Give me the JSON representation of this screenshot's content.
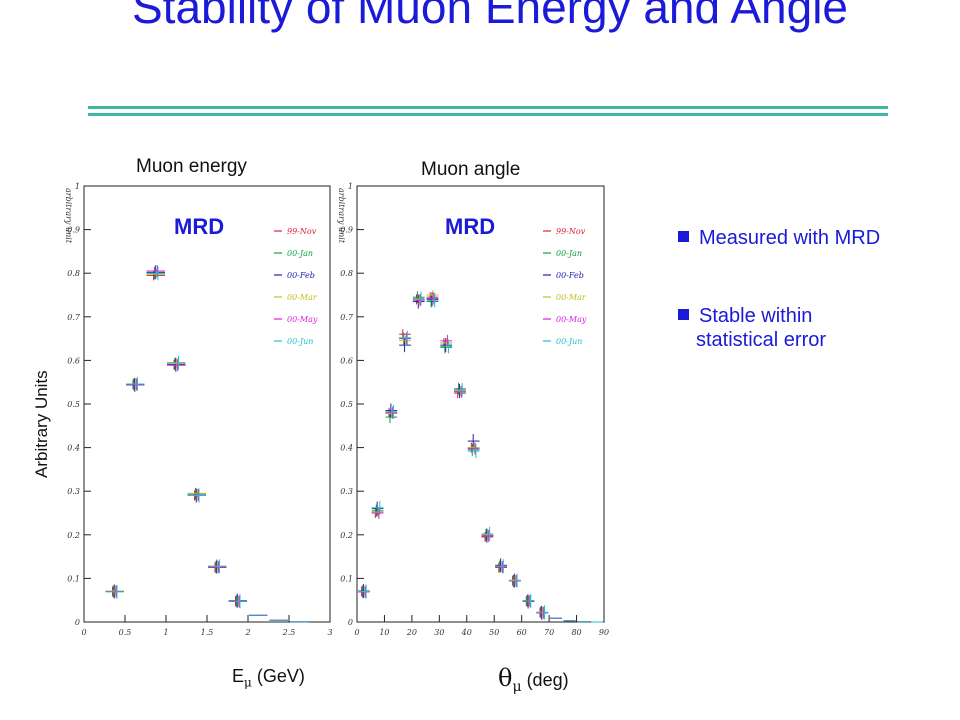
{
  "slide": {
    "title": "Stability of Muon Energy and Angle",
    "title_color": "#1a1ad8",
    "rule_color": "#3db8a2",
    "y_axis_label": "Arbitrary Units",
    "bullets": [
      {
        "lines": [
          "Measured with MRD"
        ]
      },
      {
        "lines": [
          "Stable within",
          "statistical error"
        ]
      }
    ]
  },
  "chart_data": [
    {
      "type": "scatter",
      "title": "Muon energy",
      "panel_label": "MRD",
      "panel_label_color": "#1a1ad8",
      "xlabel": {
        "symbol": "E",
        "sub": "μ",
        "unit": " (GeV)"
      },
      "ylabel_small": "arbitrary unit",
      "xlim": [
        0,
        3
      ],
      "ylim": [
        0,
        1
      ],
      "x_ticks": [
        "0",
        "0.5",
        "1",
        "1.5",
        "2",
        "2.5",
        "3"
      ],
      "y_ticks": [
        "0",
        "0.1",
        "0.2",
        "0.3",
        "0.4",
        "0.5",
        "0.6",
        "0.7",
        "0.8",
        "0.9",
        "1"
      ],
      "bin_half_width": 0.125,
      "x": [
        0.375,
        0.625,
        0.875,
        1.125,
        1.375,
        1.625,
        1.875,
        2.125,
        2.375,
        2.625
      ],
      "series": [
        {
          "name": "99-Nov",
          "color": "#e0203a",
          "values": [
            0.07,
            0.545,
            0.795,
            0.59,
            0.29,
            0.125,
            0.048,
            0.015,
            0.004,
            0.001
          ]
        },
        {
          "name": "00-Jan",
          "color": "#10a040",
          "values": [
            0.07,
            0.545,
            0.8,
            0.592,
            0.294,
            0.126,
            0.048,
            0.015,
            0.004,
            0.001
          ]
        },
        {
          "name": "00-Feb",
          "color": "#2020b0",
          "values": [
            0.07,
            0.544,
            0.802,
            0.59,
            0.29,
            0.127,
            0.049,
            0.016,
            0.004,
            0.001
          ]
        },
        {
          "name": "00-Mar",
          "color": "#c0c020",
          "values": [
            0.071,
            0.546,
            0.798,
            0.593,
            0.295,
            0.128,
            0.048,
            0.015,
            0.004,
            0.001
          ]
        },
        {
          "name": "00-May",
          "color": "#e020e0",
          "values": [
            0.07,
            0.545,
            0.805,
            0.589,
            0.291,
            0.126,
            0.047,
            0.015,
            0.004,
            0.001
          ]
        },
        {
          "name": "00-Jun",
          "color": "#20c0d0",
          "values": [
            0.069,
            0.546,
            0.8,
            0.595,
            0.29,
            0.128,
            0.048,
            0.016,
            0.004,
            0.001
          ]
        }
      ]
    },
    {
      "type": "scatter",
      "title": "Muon angle",
      "panel_label": "MRD",
      "panel_label_color": "#1a1ad8",
      "xlabel": {
        "symbol": "θ",
        "sub": "μ",
        "unit": " (deg)"
      },
      "ylabel_small": "arbitrary unit",
      "xlim": [
        0,
        90
      ],
      "ylim": [
        0,
        1
      ],
      "x_ticks": [
        "0",
        "10",
        "20",
        "30",
        "40",
        "50",
        "60",
        "70",
        "80",
        "90"
      ],
      "y_ticks": [
        "0",
        "0.1",
        "0.2",
        "0.3",
        "0.4",
        "0.5",
        "0.6",
        "0.7",
        "0.8",
        "0.9",
        "1"
      ],
      "bin_half_width": 2.5,
      "x": [
        2.5,
        7.5,
        12.5,
        17.5,
        22.5,
        27.5,
        32.5,
        37.5,
        42.5,
        47.5,
        52.5,
        57.5,
        62.5,
        67.5,
        72.5,
        77.5,
        82.5,
        87.5
      ],
      "series": [
        {
          "name": "99-Nov",
          "color": "#e0203a",
          "values": [
            0.07,
            0.25,
            0.48,
            0.66,
            0.74,
            0.745,
            0.64,
            0.525,
            0.4,
            0.195,
            0.125,
            0.095,
            0.048,
            0.022,
            0.008,
            0.003,
            0.001,
            0.0
          ]
        },
        {
          "name": "00-Jan",
          "color": "#10a040",
          "values": [
            0.07,
            0.255,
            0.47,
            0.65,
            0.745,
            0.735,
            0.63,
            0.535,
            0.395,
            0.2,
            0.127,
            0.094,
            0.049,
            0.022,
            0.008,
            0.003,
            0.001,
            0.0
          ]
        },
        {
          "name": "00-Feb",
          "color": "#2020b0",
          "values": [
            0.071,
            0.26,
            0.485,
            0.635,
            0.735,
            0.74,
            0.635,
            0.53,
            0.415,
            0.198,
            0.13,
            0.095,
            0.047,
            0.021,
            0.009,
            0.003,
            0.001,
            0.0
          ]
        },
        {
          "name": "00-Mar",
          "color": "#c0c020",
          "values": [
            0.07,
            0.252,
            0.478,
            0.645,
            0.74,
            0.75,
            0.64,
            0.53,
            0.4,
            0.2,
            0.128,
            0.096,
            0.048,
            0.022,
            0.008,
            0.003,
            0.001,
            0.0
          ]
        },
        {
          "name": "00-May",
          "color": "#e020e0",
          "values": [
            0.069,
            0.25,
            0.48,
            0.65,
            0.738,
            0.742,
            0.645,
            0.528,
            0.398,
            0.197,
            0.126,
            0.094,
            0.048,
            0.021,
            0.008,
            0.003,
            0.001,
            0.0
          ]
        },
        {
          "name": "00-Jun",
          "color": "#20c0d0",
          "values": [
            0.07,
            0.262,
            0.482,
            0.652,
            0.742,
            0.738,
            0.632,
            0.532,
            0.392,
            0.202,
            0.128,
            0.095,
            0.048,
            0.022,
            0.009,
            0.003,
            0.001,
            0.0
          ]
        }
      ]
    }
  ]
}
